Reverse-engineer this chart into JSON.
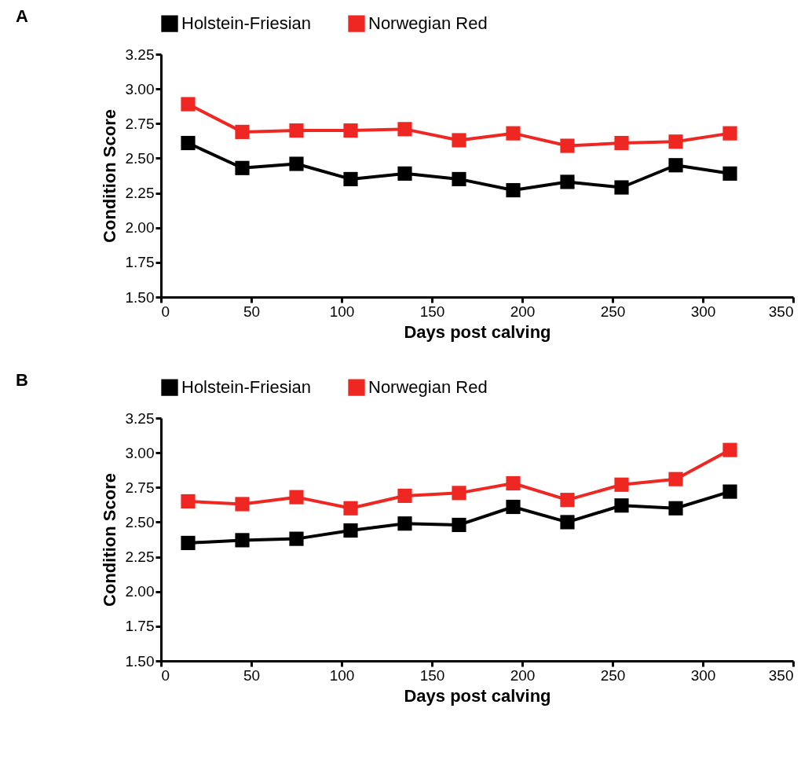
{
  "chart_data": [
    {
      "type": "line",
      "title": "A",
      "xlabel": "Days post calving",
      "ylabel": "Condition Score",
      "x": [
        15,
        45,
        75,
        105,
        135,
        165,
        195,
        225,
        255,
        285,
        315
      ],
      "series": [
        {
          "name": "Holstein-Friesian",
          "color": "#000000",
          "values": [
            2.61,
            2.43,
            2.46,
            2.35,
            2.39,
            2.35,
            2.27,
            2.33,
            2.29,
            2.45,
            2.39
          ]
        },
        {
          "name": "Norwegian Red",
          "color": "#ee2722",
          "values": [
            2.89,
            2.69,
            2.7,
            2.7,
            2.71,
            2.63,
            2.68,
            2.59,
            2.61,
            2.62,
            2.68
          ]
        }
      ],
      "xlim": [
        0,
        350
      ],
      "xticks": [
        0,
        50,
        100,
        150,
        200,
        250,
        300,
        350
      ],
      "ylim": [
        1.5,
        3.25
      ],
      "yticks": [
        {
          "value": 1.5,
          "label": "1.50"
        },
        {
          "value": 1.75,
          "label": "1.75"
        },
        {
          "value": 2,
          "label": "2.00"
        },
        {
          "value": 2.25,
          "label": "2.25"
        },
        {
          "value": 2.5,
          "label": "2.50"
        },
        {
          "value": 2.75,
          "label": "2.75"
        },
        {
          "value": 3,
          "label": "3.00"
        },
        {
          "value": 3.25,
          "label": "3.25"
        }
      ],
      "grid": false,
      "legend": "top",
      "marker": "square",
      "line_style": "solid"
    },
    {
      "type": "line",
      "title": "B",
      "xlabel": "Days post calving",
      "ylabel": "Condition Score",
      "x": [
        15,
        45,
        75,
        105,
        135,
        165,
        195,
        225,
        255,
        285,
        315
      ],
      "series": [
        {
          "name": "Holstein-Friesian",
          "color": "#000000",
          "values": [
            2.35,
            2.37,
            2.38,
            2.44,
            2.49,
            2.48,
            2.61,
            2.5,
            2.62,
            2.6,
            2.72
          ]
        },
        {
          "name": "Norwegian Red",
          "color": "#ee2722",
          "values": [
            2.65,
            2.63,
            2.68,
            2.6,
            2.69,
            2.71,
            2.78,
            2.66,
            2.77,
            2.81,
            3.02
          ]
        }
      ],
      "xlim": [
        0,
        350
      ],
      "xticks": [
        0,
        50,
        100,
        150,
        200,
        250,
        300,
        350
      ],
      "ylim": [
        1.5,
        3.25
      ],
      "yticks": [
        {
          "value": 1.5,
          "label": "1.50"
        },
        {
          "value": 1.75,
          "label": "1.75"
        },
        {
          "value": 2,
          "label": "2.00"
        },
        {
          "value": 2.25,
          "label": "2.25"
        },
        {
          "value": 2.5,
          "label": "2.50"
        },
        {
          "value": 2.75,
          "label": "2.75"
        },
        {
          "value": 3,
          "label": "3.00"
        },
        {
          "value": 3.25,
          "label": "3.25"
        }
      ],
      "grid": false,
      "legend": "top",
      "marker": "square",
      "line_style": "solid"
    }
  ]
}
